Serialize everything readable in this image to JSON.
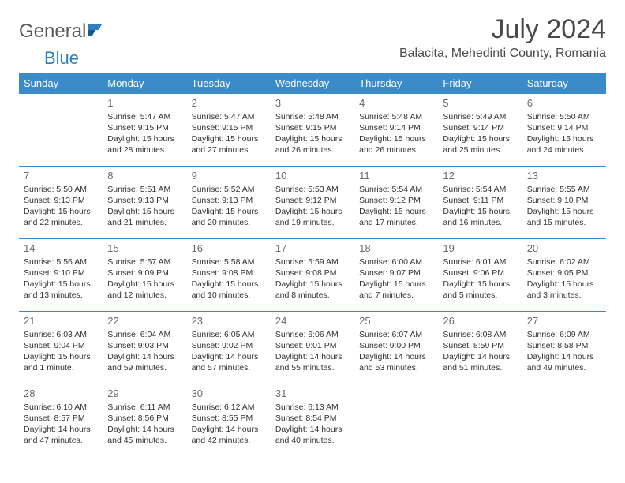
{
  "logo": {
    "word1": "General",
    "word2": "Blue"
  },
  "title": "July 2024",
  "location": "Balacita, Mehedinti County, Romania",
  "colors": {
    "header_bg": "#3b8bc8",
    "header_text": "#ffffff",
    "border": "#3b8bc8",
    "logo_gray": "#5a5a5a",
    "logo_blue": "#2a7fbf",
    "title_color": "#4a4a4a",
    "body_text": "#333333"
  },
  "weekdays": [
    "Sunday",
    "Monday",
    "Tuesday",
    "Wednesday",
    "Thursday",
    "Friday",
    "Saturday"
  ],
  "weeks": [
    [
      null,
      {
        "n": "1",
        "sunrise": "5:47 AM",
        "sunset": "9:15 PM",
        "daylight": "15 hours and 28 minutes."
      },
      {
        "n": "2",
        "sunrise": "5:47 AM",
        "sunset": "9:15 PM",
        "daylight": "15 hours and 27 minutes."
      },
      {
        "n": "3",
        "sunrise": "5:48 AM",
        "sunset": "9:15 PM",
        "daylight": "15 hours and 26 minutes."
      },
      {
        "n": "4",
        "sunrise": "5:48 AM",
        "sunset": "9:14 PM",
        "daylight": "15 hours and 26 minutes."
      },
      {
        "n": "5",
        "sunrise": "5:49 AM",
        "sunset": "9:14 PM",
        "daylight": "15 hours and 25 minutes."
      },
      {
        "n": "6",
        "sunrise": "5:50 AM",
        "sunset": "9:14 PM",
        "daylight": "15 hours and 24 minutes."
      }
    ],
    [
      {
        "n": "7",
        "sunrise": "5:50 AM",
        "sunset": "9:13 PM",
        "daylight": "15 hours and 22 minutes."
      },
      {
        "n": "8",
        "sunrise": "5:51 AM",
        "sunset": "9:13 PM",
        "daylight": "15 hours and 21 minutes."
      },
      {
        "n": "9",
        "sunrise": "5:52 AM",
        "sunset": "9:13 PM",
        "daylight": "15 hours and 20 minutes."
      },
      {
        "n": "10",
        "sunrise": "5:53 AM",
        "sunset": "9:12 PM",
        "daylight": "15 hours and 19 minutes."
      },
      {
        "n": "11",
        "sunrise": "5:54 AM",
        "sunset": "9:12 PM",
        "daylight": "15 hours and 17 minutes."
      },
      {
        "n": "12",
        "sunrise": "5:54 AM",
        "sunset": "9:11 PM",
        "daylight": "15 hours and 16 minutes."
      },
      {
        "n": "13",
        "sunrise": "5:55 AM",
        "sunset": "9:10 PM",
        "daylight": "15 hours and 15 minutes."
      }
    ],
    [
      {
        "n": "14",
        "sunrise": "5:56 AM",
        "sunset": "9:10 PM",
        "daylight": "15 hours and 13 minutes."
      },
      {
        "n": "15",
        "sunrise": "5:57 AM",
        "sunset": "9:09 PM",
        "daylight": "15 hours and 12 minutes."
      },
      {
        "n": "16",
        "sunrise": "5:58 AM",
        "sunset": "9:08 PM",
        "daylight": "15 hours and 10 minutes."
      },
      {
        "n": "17",
        "sunrise": "5:59 AM",
        "sunset": "9:08 PM",
        "daylight": "15 hours and 8 minutes."
      },
      {
        "n": "18",
        "sunrise": "6:00 AM",
        "sunset": "9:07 PM",
        "daylight": "15 hours and 7 minutes."
      },
      {
        "n": "19",
        "sunrise": "6:01 AM",
        "sunset": "9:06 PM",
        "daylight": "15 hours and 5 minutes."
      },
      {
        "n": "20",
        "sunrise": "6:02 AM",
        "sunset": "9:05 PM",
        "daylight": "15 hours and 3 minutes."
      }
    ],
    [
      {
        "n": "21",
        "sunrise": "6:03 AM",
        "sunset": "9:04 PM",
        "daylight": "15 hours and 1 minute."
      },
      {
        "n": "22",
        "sunrise": "6:04 AM",
        "sunset": "9:03 PM",
        "daylight": "14 hours and 59 minutes."
      },
      {
        "n": "23",
        "sunrise": "6:05 AM",
        "sunset": "9:02 PM",
        "daylight": "14 hours and 57 minutes."
      },
      {
        "n": "24",
        "sunrise": "6:06 AM",
        "sunset": "9:01 PM",
        "daylight": "14 hours and 55 minutes."
      },
      {
        "n": "25",
        "sunrise": "6:07 AM",
        "sunset": "9:00 PM",
        "daylight": "14 hours and 53 minutes."
      },
      {
        "n": "26",
        "sunrise": "6:08 AM",
        "sunset": "8:59 PM",
        "daylight": "14 hours and 51 minutes."
      },
      {
        "n": "27",
        "sunrise": "6:09 AM",
        "sunset": "8:58 PM",
        "daylight": "14 hours and 49 minutes."
      }
    ],
    [
      {
        "n": "28",
        "sunrise": "6:10 AM",
        "sunset": "8:57 PM",
        "daylight": "14 hours and 47 minutes."
      },
      {
        "n": "29",
        "sunrise": "6:11 AM",
        "sunset": "8:56 PM",
        "daylight": "14 hours and 45 minutes."
      },
      {
        "n": "30",
        "sunrise": "6:12 AM",
        "sunset": "8:55 PM",
        "daylight": "14 hours and 42 minutes."
      },
      {
        "n": "31",
        "sunrise": "6:13 AM",
        "sunset": "8:54 PM",
        "daylight": "14 hours and 40 minutes."
      },
      null,
      null,
      null
    ]
  ],
  "labels": {
    "sunrise": "Sunrise:",
    "sunset": "Sunset:",
    "daylight": "Daylight:"
  }
}
